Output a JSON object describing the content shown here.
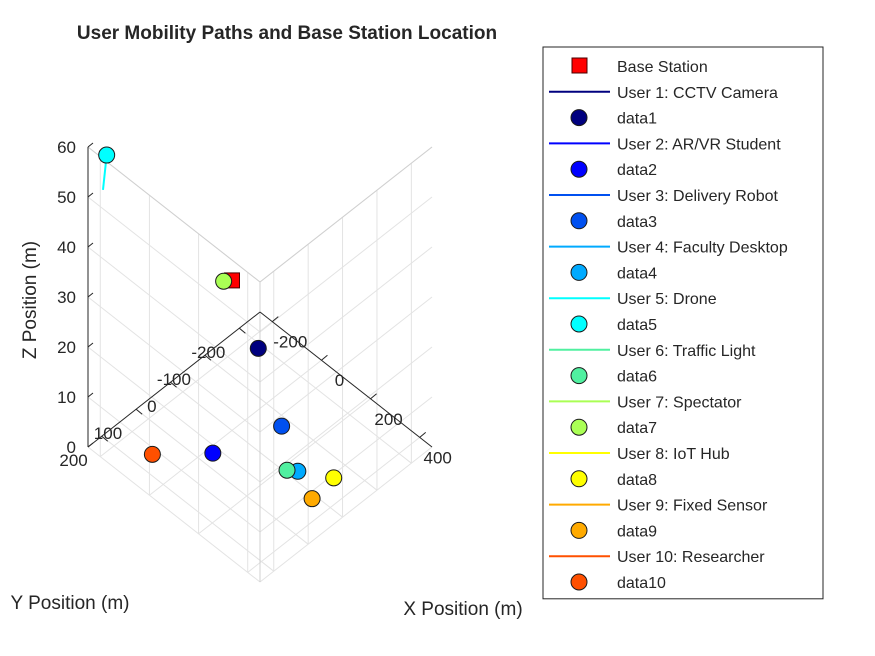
{
  "chart_data": {
    "type": "scatter3d",
    "title": "User Mobility Paths and Base Station Location",
    "xlabel": "X Position (m)",
    "ylabel": "Y Position (m)",
    "zlabel": "Z Position (m)",
    "xlim": [
      -250,
      450
    ],
    "ylim": [
      -260,
      240
    ],
    "zlim": [
      0,
      60
    ],
    "xticks": [
      "-200",
      "0",
      "200",
      "400"
    ],
    "yticks": [
      "200",
      "100",
      "0",
      "-100",
      "-200"
    ],
    "zticks": [
      "0",
      "10",
      "20",
      "30",
      "40",
      "50",
      "60"
    ],
    "grid": true,
    "legend_position": "right, outside",
    "base_station": {
      "name": "Base Station",
      "x": 0,
      "y": 0,
      "z": 30,
      "color": "#ff0000"
    },
    "series": [
      {
        "name": "User 1: CCTV Camera",
        "marker_label": "data1",
        "color": "#00007f",
        "x": 100,
        "y": -5,
        "z": 20
      },
      {
        "name": "User 2: AR/VR Student",
        "marker_label": "data2",
        "color": "#0000ff",
        "x": 20,
        "y": 70,
        "z": 0
      },
      {
        "name": "User 3: Delivery Robot",
        "marker_label": "data3",
        "color": "#0050f0",
        "x": 90,
        "y": -80,
        "z": 0
      },
      {
        "name": "User 4: Faculty Desktop",
        "marker_label": "data4",
        "color": "#00aaff",
        "x": 240,
        "y": -20,
        "z": 0
      },
      {
        "name": "User 5: Drone",
        "marker_label": "data5",
        "color": "#00ffff",
        "x": -230,
        "y": 200,
        "z": 57,
        "path": [
          [
            -230,
            200,
            57
          ],
          [
            -238,
            205,
            50
          ]
        ]
      },
      {
        "name": "User 6: Traffic Light",
        "marker_label": "data6",
        "color": "#50f0a0",
        "x": 280,
        "y": 40,
        "z": 5
      },
      {
        "name": "User 7: Spectator",
        "marker_label": "data7",
        "color": "#aaff55",
        "x": 50,
        "y": 60,
        "z": 35
      },
      {
        "name": "User 8: IoT Hub",
        "marker_label": "data8",
        "color": "#ffff00",
        "x": 330,
        "y": -60,
        "z": 0
      },
      {
        "name": "User 9: Fixed Sensor",
        "marker_label": "data9",
        "color": "#ffaa00",
        "x": 340,
        "y": 10,
        "z": 0
      },
      {
        "name": "User 10: Researcher",
        "marker_label": "data10",
        "color": "#ff5000",
        "x": -100,
        "y": 160,
        "z": 0
      }
    ]
  }
}
